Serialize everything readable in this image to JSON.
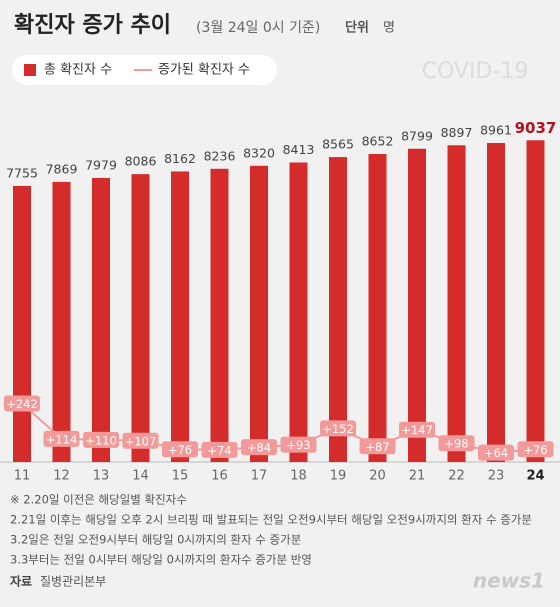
{
  "chart_data": {
    "type": "bar",
    "title": "확진자 증가 추이",
    "subtitle": "(3월 24일 0시 기준)",
    "unit_label": "단위",
    "unit": "명",
    "watermark": "COVID-19",
    "categories": [
      "11",
      "12",
      "13",
      "14",
      "15",
      "16",
      "17",
      "18",
      "19",
      "20",
      "21",
      "22",
      "23",
      "24"
    ],
    "ylim": [
      0,
      10000
    ],
    "y2lim": [
      30,
      1320
    ],
    "series": [
      {
        "name": "총 확진자 수",
        "type": "bar",
        "color": "#d42b2b",
        "values": [
          7755,
          7869,
          7979,
          8086,
          8162,
          8236,
          8320,
          8413,
          8565,
          8652,
          8799,
          8897,
          8961,
          9037
        ]
      },
      {
        "name": "증가된 확진자 수",
        "type": "line",
        "axis": "y2",
        "color": "#f29a9a",
        "values": [
          242,
          114,
          110,
          107,
          76,
          74,
          84,
          93,
          152,
          87,
          147,
          98,
          64,
          76
        ],
        "value_labels": [
          "+242",
          "+114",
          "+110",
          "+107",
          "+76",
          "+74",
          "+84",
          "+93",
          "+152",
          "+87",
          "+147",
          "+98",
          "+64",
          "+76"
        ]
      }
    ],
    "notes": [
      "※ 2.20일 이전은 해당일별 확진자수",
      "2.21일 이후는 해당일 오후 2시 브리핑 때 발표되는 전일 오전9시부터 해당일 오전9시까지의 환자 수 증가분",
      "3.2일은 전일 오전9시부터 해당일 0시까지의 환자 수 증가분",
      "3.3부터는 전일 0시부터 해당일 0시까지의 환자수 증가분 반영"
    ],
    "source": {
      "label": "자료",
      "text": "질병관리본부"
    },
    "logo": "news1"
  }
}
